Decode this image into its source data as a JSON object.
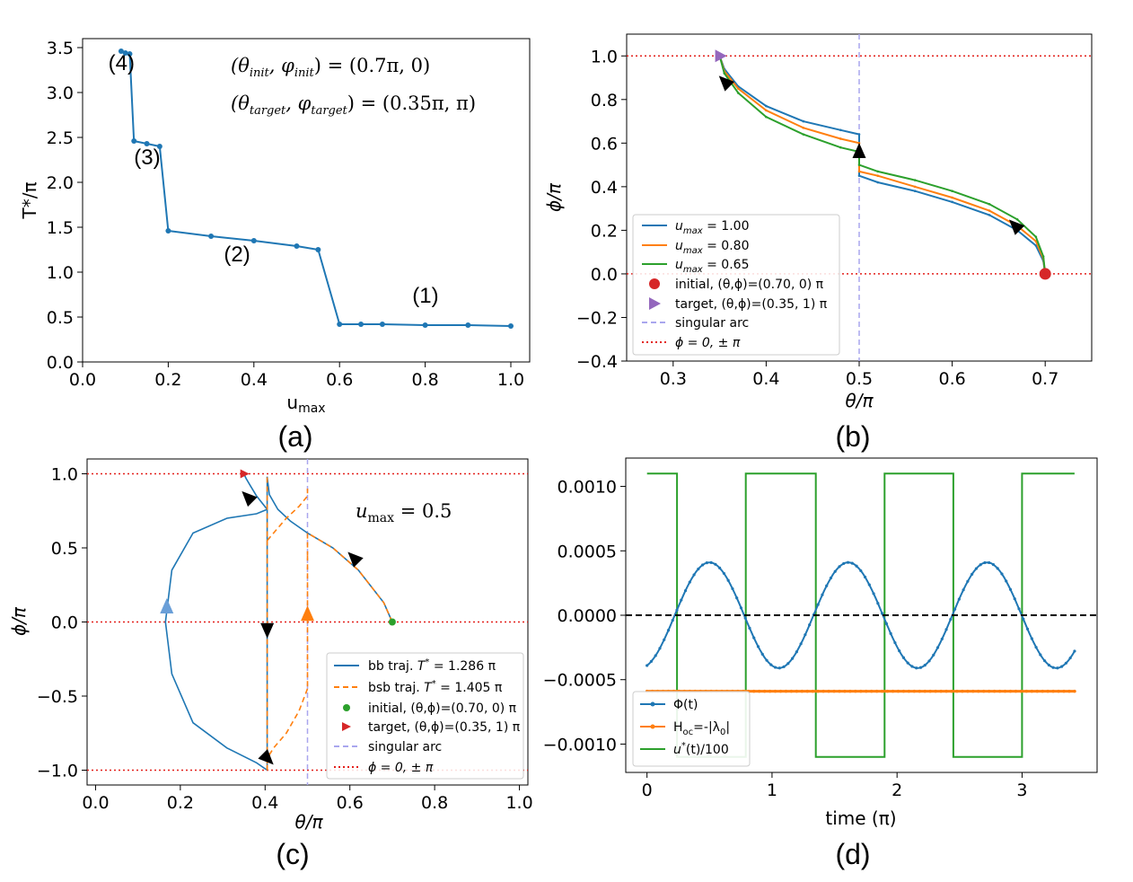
{
  "colors": {
    "blue": "#1f77b4",
    "orange": "#ff7f0e",
    "green": "#2ca02c",
    "red": "#d62728",
    "purple": "#9467bd",
    "lilac": "#a9a6ee",
    "dotred": "#e3211c",
    "black": "#000000",
    "lightblue": "#6a9fd8"
  },
  "chart_data": [
    {
      "id": "a",
      "type": "line",
      "caption": "(a)",
      "xlabel": "u",
      "xlabel_sub": "max",
      "ylabel": "T*/π",
      "xlim": [
        0.0,
        1.0
      ],
      "ylim": [
        0.0,
        3.5
      ],
      "xticks": [
        "0.0",
        "0.2",
        "0.4",
        "0.6",
        "0.8",
        "1.0"
      ],
      "yticks": [
        "0.0",
        "0.5",
        "1.0",
        "1.5",
        "2.0",
        "2.5",
        "3.0",
        "3.5"
      ],
      "series": [
        {
          "name": "T*/π",
          "x": [
            0.09,
            0.1,
            0.11,
            0.12,
            0.15,
            0.18,
            0.2,
            0.3,
            0.4,
            0.5,
            0.55,
            0.6,
            0.65,
            0.7,
            0.8,
            0.9,
            1.0
          ],
          "y": [
            3.46,
            3.44,
            3.43,
            2.46,
            2.43,
            2.4,
            1.46,
            1.4,
            1.35,
            1.29,
            1.25,
            0.42,
            0.42,
            0.42,
            0.41,
            0.41,
            0.4
          ]
        }
      ],
      "annotations": [
        {
          "text": "(4)",
          "x": 0.06,
          "y": 3.25
        },
        {
          "text": "(3)",
          "x": 0.12,
          "y": 2.2
        },
        {
          "text": "(2)",
          "x": 0.33,
          "y": 1.12
        },
        {
          "text": "(1)",
          "x": 0.77,
          "y": 0.66
        }
      ],
      "equations": [
        {
          "lhs": "(θ",
          "lsub": "init",
          "mid": ", φ",
          "msub": "init",
          "rhs": ") = (0.7π, 0)"
        },
        {
          "lhs": "(θ",
          "lsub": "target",
          "mid": ", φ",
          "msub": "target",
          "rhs": ") = (0.35π, π)"
        }
      ]
    },
    {
      "id": "b",
      "type": "line",
      "caption": "(b)",
      "xlabel": "θ/π",
      "ylabel": "ϕ/π",
      "xlim": [
        0.25,
        0.75
      ],
      "ylim": [
        -0.4,
        1.1
      ],
      "xticks": [
        "0.3",
        "0.4",
        "0.5",
        "0.6",
        "0.7"
      ],
      "yticks": [
        "−0.4",
        "−0.2",
        "0.0",
        "0.2",
        "0.4",
        "0.6",
        "0.8",
        "1.0"
      ],
      "series": [
        {
          "name": "u",
          "sub": "max",
          "suffix": " = 1.00",
          "color": "blue",
          "x": [
            0.7,
            0.698,
            0.69,
            0.67,
            0.64,
            0.6,
            0.56,
            0.52,
            0.5,
            0.5,
            0.48,
            0.44,
            0.4,
            0.37,
            0.355,
            0.35
          ],
          "y": [
            0.0,
            0.06,
            0.13,
            0.2,
            0.27,
            0.33,
            0.38,
            0.42,
            0.45,
            0.64,
            0.66,
            0.7,
            0.77,
            0.86,
            0.94,
            1.0
          ]
        },
        {
          "name": "u",
          "sub": "max",
          "suffix": " = 0.80",
          "color": "orange",
          "x": [
            0.7,
            0.698,
            0.69,
            0.67,
            0.64,
            0.6,
            0.56,
            0.52,
            0.5,
            0.5,
            0.48,
            0.44,
            0.4,
            0.37,
            0.355,
            0.35
          ],
          "y": [
            0.0,
            0.07,
            0.15,
            0.22,
            0.29,
            0.35,
            0.4,
            0.45,
            0.47,
            0.6,
            0.62,
            0.67,
            0.75,
            0.85,
            0.93,
            1.0
          ]
        },
        {
          "name": "u",
          "sub": "max",
          "suffix": " = 0.65",
          "color": "green",
          "x": [
            0.7,
            0.698,
            0.69,
            0.67,
            0.64,
            0.6,
            0.56,
            0.52,
            0.5,
            0.5,
            0.48,
            0.44,
            0.4,
            0.37,
            0.355,
            0.35
          ],
          "y": [
            0.0,
            0.08,
            0.17,
            0.25,
            0.32,
            0.38,
            0.43,
            0.47,
            0.5,
            0.56,
            0.58,
            0.64,
            0.72,
            0.83,
            0.92,
            1.0
          ]
        }
      ],
      "initial": {
        "x": 0.7,
        "y": 0.0,
        "label": "initial, (θ,ϕ)=(0.70, 0) π"
      },
      "target": {
        "x": 0.35,
        "y": 1.0,
        "label": "target, (θ,ϕ)=(0.35, 1) π"
      },
      "singular": {
        "x": 0.5,
        "label": "singular arc"
      },
      "hlines": {
        "values": [
          0,
          1
        ],
        "label": "ϕ = 0, ± π"
      },
      "arrows": [
        {
          "x": 0.668,
          "y": 0.22,
          "dir": "up-left"
        },
        {
          "x": 0.5,
          "y": 0.56,
          "dir": "up"
        },
        {
          "x": 0.356,
          "y": 0.88,
          "dir": "up-left"
        }
      ]
    },
    {
      "id": "c",
      "type": "line",
      "caption": "(c)",
      "xlabel": "θ/π",
      "ylabel": "ϕ/π",
      "xlim": [
        -0.02,
        1.02
      ],
      "ylim": [
        -1.1,
        1.1
      ],
      "xticks": [
        "0.0",
        "0.2",
        "0.4",
        "0.6",
        "0.8",
        "1.0"
      ],
      "yticks": [
        "−1.0",
        "−0.5",
        "0.0",
        "0.5",
        "1.0"
      ],
      "annotation": {
        "lhs": "u",
        "sub": "max",
        "rhs": " = 0.5"
      },
      "series": [
        {
          "name": "bb traj. ",
          "tstar": "T",
          "suffix": " = 1.286 π",
          "style": "solid",
          "color": "blue",
          "segments": [
            {
              "x": [
                0.7,
                0.68,
                0.62,
                0.56,
                0.5,
                0.46,
                0.43,
                0.41,
                0.405
              ],
              "y": [
                0.0,
                0.13,
                0.35,
                0.5,
                0.6,
                0.68,
                0.76,
                0.86,
                0.98
              ]
            },
            {
              "x": [
                0.405,
                0.405
              ],
              "y": [
                0.98,
                -1.0
              ]
            },
            {
              "x": [
                0.405,
                0.38,
                0.31,
                0.23,
                0.18,
                0.165,
                0.18,
                0.23,
                0.31,
                0.38,
                0.405
              ],
              "y": [
                -1.0,
                -0.95,
                -0.85,
                -0.68,
                -0.35,
                0.0,
                0.35,
                0.6,
                0.7,
                0.73,
                0.76
              ]
            },
            {
              "x": [
                0.405,
                0.38,
                0.365,
                0.355,
                0.35
              ],
              "y": [
                0.76,
                0.85,
                0.92,
                0.97,
                1.0
              ]
            }
          ]
        },
        {
          "name": "bsb traj. ",
          "tstar": "T",
          "suffix": " = 1.405 π",
          "style": "dashed",
          "color": "orange",
          "segments": [
            {
              "x": [
                0.7,
                0.68,
                0.62,
                0.56,
                0.5,
                0.5
              ],
              "y": [
                0.0,
                0.13,
                0.35,
                0.5,
                0.6,
                0.45
              ]
            },
            {
              "x": [
                0.5,
                0.5
              ],
              "y": [
                0.45,
                -0.45
              ]
            },
            {
              "x": [
                0.5,
                0.48,
                0.45,
                0.42,
                0.405,
                0.405
              ],
              "y": [
                -0.45,
                -0.6,
                -0.75,
                -0.85,
                -0.92,
                -1.0
              ]
            },
            {
              "x": [
                0.405,
                0.405
              ],
              "y": [
                -1.0,
                0.98
              ]
            },
            {
              "x": [
                0.405,
                0.42,
                0.45,
                0.48,
                0.5,
                0.5
              ],
              "y": [
                0.55,
                0.6,
                0.7,
                0.78,
                0.85,
                0.9
              ]
            }
          ]
        }
      ],
      "initial": {
        "x": 0.7,
        "y": 0.0,
        "label": "initial, (θ,ϕ)=(0.70, 0) π"
      },
      "target": {
        "x": 0.35,
        "y": 1.0,
        "label": "target, (θ,ϕ)=(0.35, 1) π"
      },
      "singular": {
        "x": 0.5,
        "label": "singular arc"
      },
      "hlines": {
        "values": [
          -1,
          0,
          1
        ],
        "label": "ϕ = 0, ± π"
      },
      "arrows": [
        {
          "x": 0.61,
          "y": 0.43,
          "dir": "up-left",
          "color": "black"
        },
        {
          "x": 0.36,
          "y": 0.84,
          "dir": "up-left",
          "color": "black"
        },
        {
          "x": 0.405,
          "y": -0.05,
          "dir": "down",
          "color": "black"
        },
        {
          "x": 0.5,
          "y": 0.05,
          "dir": "up",
          "color": "orange"
        },
        {
          "x": 0.168,
          "y": 0.1,
          "dir": "up",
          "color": "lightblue"
        },
        {
          "x": 0.405,
          "y": -0.92,
          "dir": "down-right",
          "color": "black"
        }
      ]
    },
    {
      "id": "d",
      "type": "line",
      "caption": "(d)",
      "xlabel": "time (π)",
      "ylabel": "",
      "xlim": [
        -0.17,
        3.6
      ],
      "ylim": [
        -0.00122,
        0.00122
      ],
      "xticks": [
        "0",
        "1",
        "2",
        "3"
      ],
      "yticks": [
        "−0.0010",
        "−0.0005",
        "0.0000",
        "0.0005",
        "0.0010"
      ],
      "phi": {
        "label": "Φ(t)",
        "amplitude": 0.00041,
        "period": 1.11,
        "phase_start": -0.00039,
        "t_end": 3.42
      },
      "hoc": {
        "label": "H",
        "sub": "oc",
        "suffix": "=-|λ",
        "sub2": "0",
        "suffix2": "|",
        "value": -0.00059
      },
      "ustar": {
        "label": "u",
        "sup": "*",
        "suffix": "(t)/100",
        "switch_times": [
          0.24,
          0.79,
          1.35,
          1.9,
          2.45,
          3.0
        ],
        "high": 0.0011,
        "low": -0.0011
      },
      "zero_line": 0
    }
  ]
}
